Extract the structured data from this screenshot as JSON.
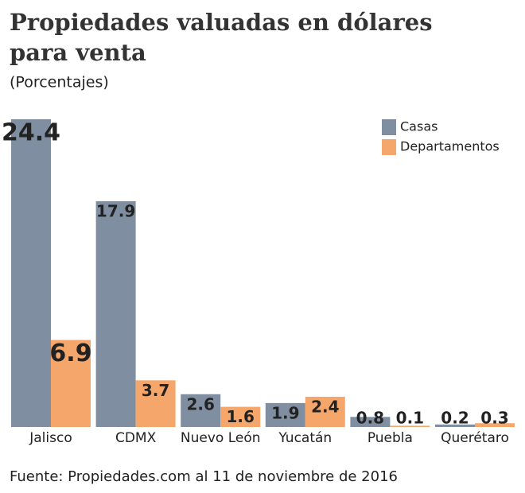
{
  "chart_data": {
    "type": "bar",
    "title": "Propiedades valuadas en dólares para venta",
    "subtitle": "(Porcentajes)",
    "source": "Fuente: Propiedades.com al 11 de noviembre de 2016",
    "categories": [
      "Jalisco",
      "CDMX",
      "Nuevo León",
      "Yucatán",
      "Puebla",
      "Querétaro"
    ],
    "series": [
      {
        "name": "Casas",
        "color": "#7f8ea0",
        "values": [
          24.4,
          17.9,
          2.6,
          1.9,
          0.8,
          0.2
        ]
      },
      {
        "name": "Departamentos",
        "color": "#f5a66a",
        "values": [
          6.9,
          3.7,
          1.6,
          2.4,
          0.1,
          0.3
        ]
      }
    ],
    "legend": "top-right"
  }
}
